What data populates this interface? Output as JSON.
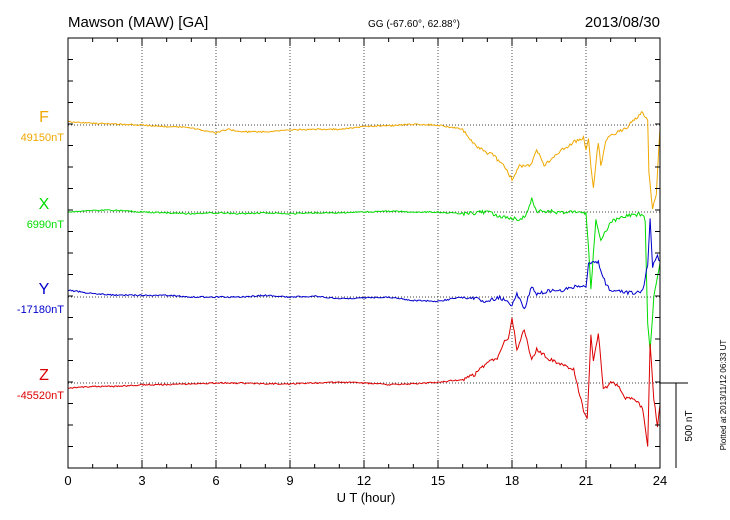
{
  "header": {
    "station": "Mawson (MAW)  [GA]",
    "coords": "GG (-67.60°,  62.88°)",
    "date": "2013/08/30"
  },
  "plotted_note": "Plotted at 2013/11/12 06:33 UT",
  "chart_data": {
    "type": "line",
    "title": "Mawson (MAW)  [GA]",
    "xlabel": "U T (hour)",
    "xlim": [
      0,
      24
    ],
    "x_ticks": [
      0,
      3,
      6,
      9,
      12,
      15,
      18,
      21,
      24
    ],
    "grid": true,
    "scale_bar": {
      "label": "500 nT",
      "value_nT": 500
    },
    "series": [
      {
        "name": "F",
        "baseline_label": "49150nT",
        "baseline_nT": 49150,
        "color": "#f0a800",
        "points": [
          [
            0,
            20
          ],
          [
            1,
            10
          ],
          [
            2,
            5
          ],
          [
            3,
            0
          ],
          [
            4,
            -10
          ],
          [
            5,
            -15
          ],
          [
            5.5,
            -35
          ],
          [
            6,
            -45
          ],
          [
            6.5,
            -25
          ],
          [
            7,
            -40
          ],
          [
            8,
            -40
          ],
          [
            9,
            -30
          ],
          [
            10,
            -25
          ],
          [
            11,
            -25
          ],
          [
            12,
            -10
          ],
          [
            12.5,
            -5
          ],
          [
            13,
            -5
          ],
          [
            14,
            5
          ],
          [
            15,
            0
          ],
          [
            16,
            -25
          ],
          [
            16.3,
            -85
          ],
          [
            16.8,
            -150
          ],
          [
            17.2,
            -175
          ],
          [
            17.6,
            -230
          ],
          [
            18,
            -320
          ],
          [
            18.3,
            -240
          ],
          [
            18.8,
            -230
          ],
          [
            19,
            -140
          ],
          [
            19.3,
            -240
          ],
          [
            19.7,
            -180
          ],
          [
            20,
            -150
          ],
          [
            20.5,
            -100
          ],
          [
            20.9,
            -75
          ],
          [
            21,
            -140
          ],
          [
            21.1,
            -80
          ],
          [
            21.2,
            -250
          ],
          [
            21.3,
            -365
          ],
          [
            21.4,
            -230
          ],
          [
            21.5,
            -100
          ],
          [
            21.6,
            -245
          ],
          [
            21.8,
            -100
          ],
          [
            22,
            -60
          ],
          [
            22.5,
            -30
          ],
          [
            23,
            30
          ],
          [
            23.3,
            75
          ],
          [
            23.5,
            30
          ],
          [
            23.55,
            -270
          ],
          [
            23.7,
            -500
          ],
          [
            23.85,
            -400
          ],
          [
            24,
            -20
          ]
        ]
      },
      {
        "name": "X",
        "baseline_label": "6990nT",
        "baseline_nT": 6990,
        "color": "#00dd00",
        "points": [
          [
            0,
            0
          ],
          [
            1,
            10
          ],
          [
            2,
            10
          ],
          [
            3,
            0
          ],
          [
            4,
            -5
          ],
          [
            5,
            -10
          ],
          [
            6,
            -5
          ],
          [
            7,
            -10
          ],
          [
            8,
            -5
          ],
          [
            9,
            -10
          ],
          [
            10,
            -5
          ],
          [
            11,
            -5
          ],
          [
            12,
            0
          ],
          [
            13,
            5
          ],
          [
            14,
            0
          ],
          [
            15,
            0
          ],
          [
            16,
            -10
          ],
          [
            16.5,
            -5
          ],
          [
            17,
            0
          ],
          [
            17.5,
            -30
          ],
          [
            18,
            -40
          ],
          [
            18.4,
            -40
          ],
          [
            18.6,
            -5
          ],
          [
            18.8,
            75
          ],
          [
            19,
            5
          ],
          [
            19.5,
            5
          ],
          [
            20,
            -5
          ],
          [
            20.5,
            5
          ],
          [
            21,
            -5
          ],
          [
            21.1,
            -210
          ],
          [
            21.2,
            -450
          ],
          [
            21.4,
            -50
          ],
          [
            21.6,
            -165
          ],
          [
            22,
            -60
          ],
          [
            22.5,
            -25
          ],
          [
            23,
            -20
          ],
          [
            23.3,
            -10
          ],
          [
            23.4,
            -50
          ],
          [
            23.5,
            -650
          ],
          [
            23.6,
            -820
          ],
          [
            23.75,
            -500
          ],
          [
            24,
            -300
          ]
        ]
      },
      {
        "name": "Y",
        "baseline_label": "-17180nT",
        "baseline_nT": -17180,
        "color": "#0000cc",
        "points": [
          [
            0,
            40
          ],
          [
            1,
            20
          ],
          [
            2,
            10
          ],
          [
            3,
            10
          ],
          [
            4,
            10
          ],
          [
            5,
            0
          ],
          [
            6,
            0
          ],
          [
            7,
            0
          ],
          [
            8,
            10
          ],
          [
            9,
            0
          ],
          [
            10,
            5
          ],
          [
            11,
            -10
          ],
          [
            12,
            -5
          ],
          [
            13,
            0
          ],
          [
            14,
            -20
          ],
          [
            15,
            -25
          ],
          [
            16,
            0
          ],
          [
            16.5,
            -5
          ],
          [
            17,
            -30
          ],
          [
            17.5,
            0
          ],
          [
            18,
            -50
          ],
          [
            18.2,
            20
          ],
          [
            18.5,
            -70
          ],
          [
            18.8,
            60
          ],
          [
            19,
            20
          ],
          [
            19.5,
            35
          ],
          [
            20,
            35
          ],
          [
            20.5,
            60
          ],
          [
            21,
            60
          ],
          [
            21.1,
            190
          ],
          [
            21.3,
            200
          ],
          [
            21.5,
            205
          ],
          [
            21.8,
            80
          ],
          [
            22,
            35
          ],
          [
            22.5,
            30
          ],
          [
            23,
            20
          ],
          [
            23.3,
            40
          ],
          [
            23.5,
            190
          ],
          [
            23.6,
            460
          ],
          [
            23.7,
            180
          ],
          [
            23.9,
            240
          ],
          [
            24,
            210
          ]
        ]
      },
      {
        "name": "Z",
        "baseline_label": "-45520nT",
        "baseline_nT": -45520,
        "color": "#dd0000",
        "points": [
          [
            0,
            -30
          ],
          [
            1,
            -20
          ],
          [
            2,
            -20
          ],
          [
            3,
            -10
          ],
          [
            4,
            -10
          ],
          [
            5,
            -5
          ],
          [
            6,
            0
          ],
          [
            7,
            0
          ],
          [
            8,
            -5
          ],
          [
            9,
            -5
          ],
          [
            10,
            0
          ],
          [
            11,
            5
          ],
          [
            12,
            0
          ],
          [
            13,
            -10
          ],
          [
            14,
            -5
          ],
          [
            15,
            5
          ],
          [
            16,
            20
          ],
          [
            16.5,
            50
          ],
          [
            17,
            120
          ],
          [
            17.4,
            140
          ],
          [
            17.7,
            240
          ],
          [
            17.85,
            250
          ],
          [
            18,
            380
          ],
          [
            18.2,
            200
          ],
          [
            18.5,
            320
          ],
          [
            18.8,
            130
          ],
          [
            19,
            200
          ],
          [
            19.5,
            140
          ],
          [
            20,
            110
          ],
          [
            20.5,
            80
          ],
          [
            20.9,
            -160
          ],
          [
            21.05,
            -200
          ],
          [
            21.2,
            280
          ],
          [
            21.3,
            120
          ],
          [
            21.5,
            300
          ],
          [
            21.7,
            -40
          ],
          [
            22,
            0
          ],
          [
            22.3,
            -10
          ],
          [
            22.6,
            -90
          ],
          [
            23,
            -100
          ],
          [
            23.3,
            -150
          ],
          [
            23.5,
            -370
          ],
          [
            23.6,
            230
          ],
          [
            23.75,
            -90
          ],
          [
            23.9,
            -250
          ],
          [
            24,
            -130
          ]
        ]
      }
    ]
  }
}
